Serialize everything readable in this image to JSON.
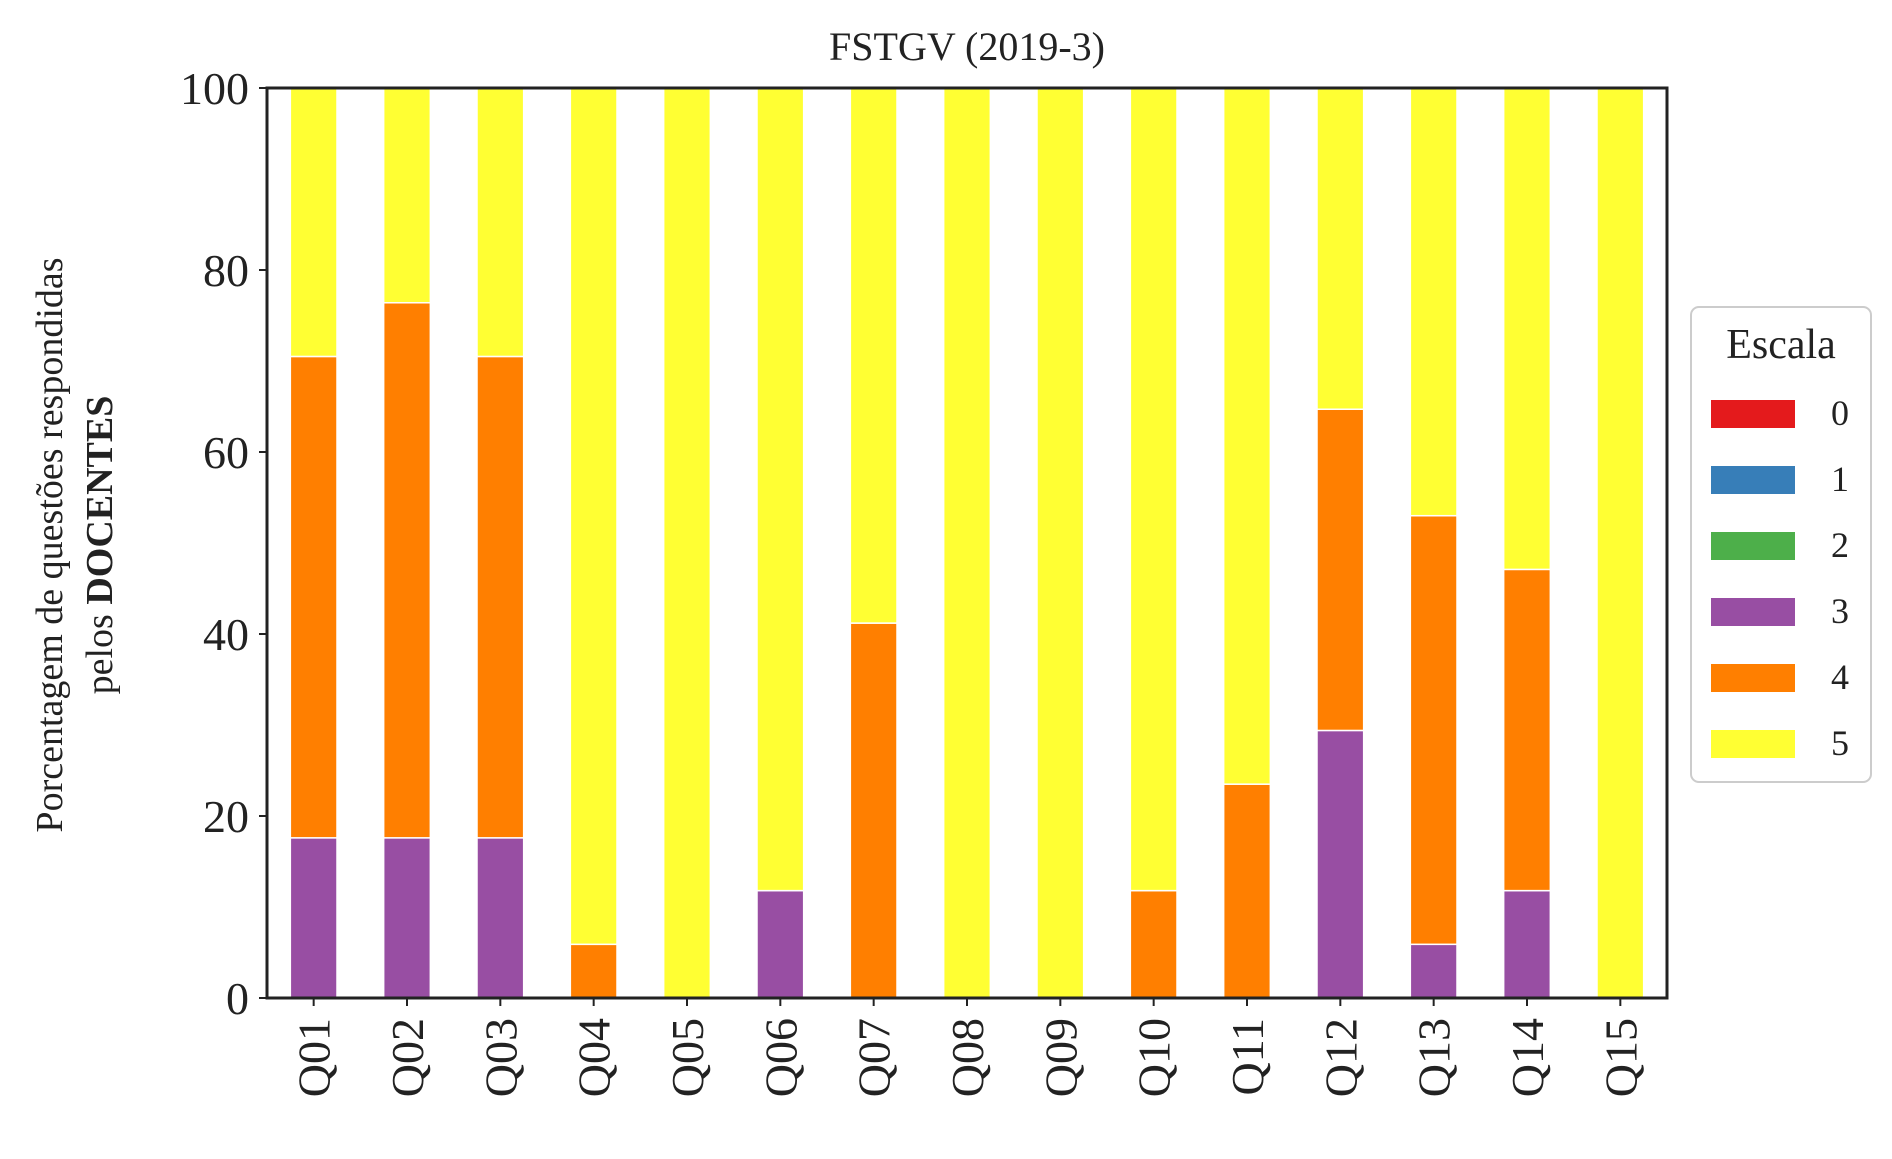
{
  "chart_data": {
    "type": "bar",
    "stacked": true,
    "title": "FSTGV (2019-3)",
    "ylabel_line1": "Porcentagem de questões respondidas",
    "ylabel_line2_prefix": "pelos ",
    "ylabel_line2_bold": "DOCENTES",
    "ylim": [
      0,
      100
    ],
    "yticks": [
      0,
      20,
      40,
      60,
      80,
      100
    ],
    "grid": false,
    "legend_title": "Escala",
    "legend_position": "right",
    "categories": [
      "Q01",
      "Q02",
      "Q03",
      "Q04",
      "Q05",
      "Q06",
      "Q07",
      "Q08",
      "Q09",
      "Q10",
      "Q11",
      "Q12",
      "Q13",
      "Q14",
      "Q15"
    ],
    "series": [
      {
        "name": "0",
        "color": "#e41a1c",
        "values": [
          0,
          0,
          0,
          0,
          0,
          0,
          0,
          0,
          0,
          0,
          0,
          0,
          0,
          0,
          0
        ]
      },
      {
        "name": "1",
        "color": "#377eb8",
        "values": [
          0,
          0,
          0,
          0,
          0,
          0,
          0,
          0,
          0,
          0,
          0,
          0,
          0,
          0,
          0
        ]
      },
      {
        "name": "2",
        "color": "#4daf4a",
        "values": [
          0,
          0,
          0,
          0,
          0,
          0,
          0,
          0,
          0,
          0,
          0,
          0,
          0,
          0,
          0
        ]
      },
      {
        "name": "3",
        "color": "#984ea3",
        "values": [
          17.6,
          17.6,
          17.6,
          0,
          0,
          11.8,
          0,
          0,
          0,
          0,
          0,
          29.4,
          5.9,
          11.8,
          0
        ]
      },
      {
        "name": "4",
        "color": "#ff7f00",
        "values": [
          52.9,
          58.8,
          52.9,
          5.9,
          0,
          0,
          41.2,
          0,
          0,
          11.8,
          23.5,
          35.3,
          47.1,
          35.3,
          0
        ]
      },
      {
        "name": "5",
        "color": "#ffff33",
        "values": [
          29.5,
          23.6,
          29.5,
          94.1,
          100,
          88.2,
          58.8,
          100,
          100,
          88.2,
          76.5,
          35.3,
          47.0,
          52.9,
          100
        ]
      }
    ]
  }
}
